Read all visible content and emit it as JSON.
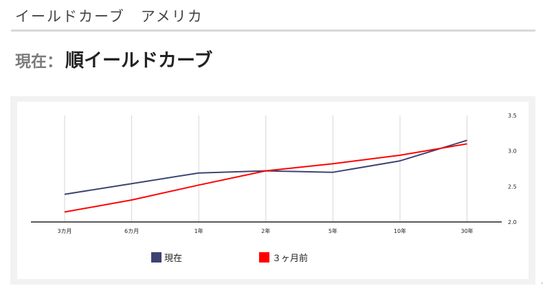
{
  "header": {
    "title": "イールドカーブ　アメリカ"
  },
  "status": {
    "prefix": "現在：",
    "value": "順イールドカーブ"
  },
  "colors": {
    "current": "#3d4370",
    "three_months_ago": "#ff0000",
    "grid": "#d6d6d6",
    "axis": "#222222"
  },
  "corner_mark": "ˏ",
  "chart_data": {
    "type": "line",
    "categories": [
      "3カ月",
      "6カ月",
      "1年",
      "2年",
      "5年",
      "10年",
      "30年"
    ],
    "series": [
      {
        "name": "現在",
        "values": [
          2.39,
          2.54,
          2.69,
          2.72,
          2.7,
          2.86,
          3.15
        ]
      },
      {
        "name": "３ヶ月前",
        "values": [
          2.14,
          2.31,
          2.52,
          2.72,
          2.82,
          2.94,
          3.1
        ]
      }
    ],
    "ylim": [
      2.0,
      3.5
    ],
    "yticks": [
      "3.5",
      "3.0",
      "2.5",
      "2.0"
    ],
    "y_axis_side": "right",
    "grid": "vertical",
    "legend_position": "bottom"
  }
}
